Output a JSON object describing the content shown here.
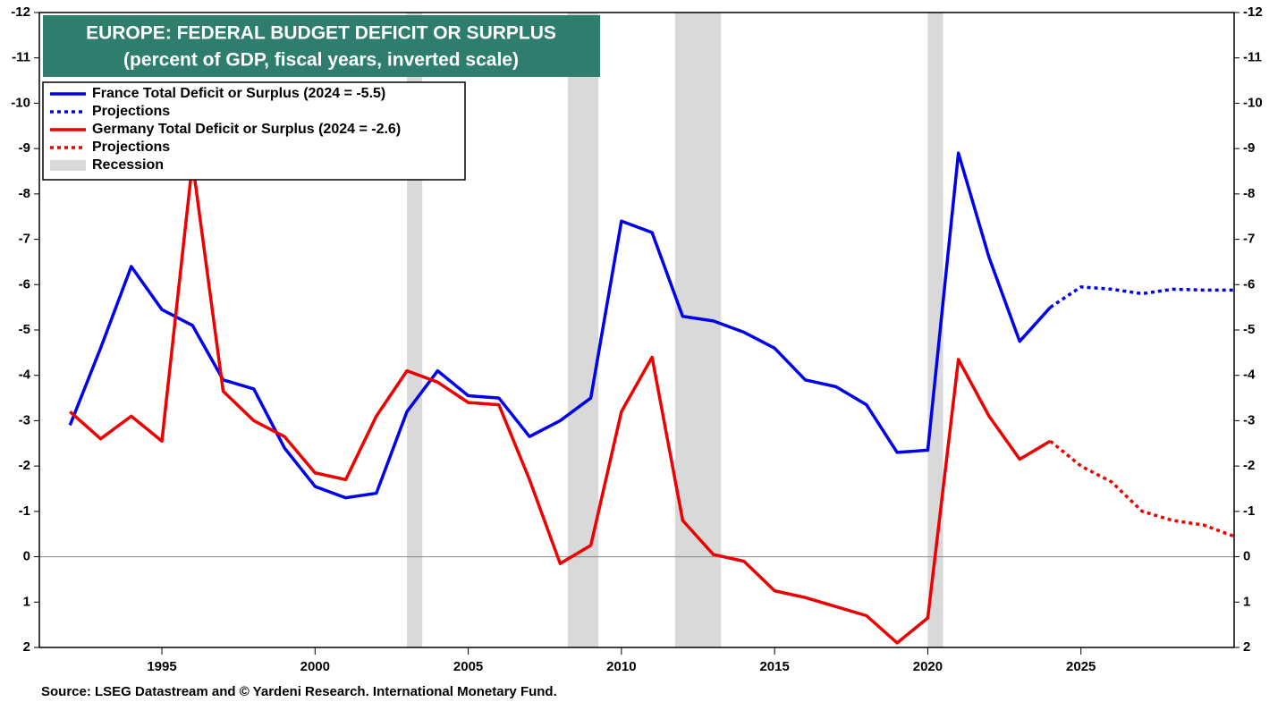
{
  "chart_data": {
    "type": "line",
    "title": "EUROPE: FEDERAL BUDGET DEFICIT OR SURPLUS",
    "subtitle": "(percent of GDP, fiscal years, inverted scale)",
    "source": "Source: LSEG Datastream and © Yardeni Research. International Monetary Fund.",
    "x": [
      1992,
      1993,
      1994,
      1995,
      1996,
      1997,
      1998,
      1999,
      2000,
      2001,
      2002,
      2003,
      2004,
      2005,
      2006,
      2007,
      2008,
      2009,
      2010,
      2011,
      2012,
      2013,
      2014,
      2015,
      2016,
      2017,
      2018,
      2019,
      2020,
      2021,
      2022,
      2023,
      2024,
      2025,
      2026,
      2027,
      2028,
      2029,
      2030
    ],
    "series": [
      {
        "name": "France Total Deficit or Surplus (2024 = -5.5)",
        "color": "#0000ee",
        "dashed": false,
        "values": [
          -2.9,
          -4.6,
          -6.4,
          -5.45,
          -5.1,
          -3.9,
          -3.7,
          -2.4,
          -1.55,
          -1.3,
          -1.4,
          -3.2,
          -4.1,
          -3.55,
          -3.5,
          -2.65,
          -3.0,
          -3.5,
          -7.4,
          -7.15,
          -5.3,
          -5.2,
          -4.95,
          -4.6,
          -3.9,
          -3.75,
          -3.35,
          -2.3,
          -2.35,
          -8.9,
          -6.6,
          -4.75,
          -5.5,
          null,
          null,
          null,
          null,
          null,
          null
        ]
      },
      {
        "name": "Projections",
        "color": "#0000ee",
        "dashed": true,
        "values": [
          null,
          null,
          null,
          null,
          null,
          null,
          null,
          null,
          null,
          null,
          null,
          null,
          null,
          null,
          null,
          null,
          null,
          null,
          null,
          null,
          null,
          null,
          null,
          null,
          null,
          null,
          null,
          null,
          null,
          null,
          null,
          null,
          -5.5,
          -5.95,
          -5.9,
          -5.8,
          -5.9,
          -5.88,
          -5.88
        ]
      },
      {
        "name": "Germany Total Deficit or Surplus (2024 = -2.6)",
        "color": "#ee0000",
        "dashed": false,
        "values": [
          -3.2,
          -2.6,
          -3.1,
          -2.55,
          -8.7,
          -3.65,
          -3.0,
          -2.65,
          -1.85,
          -1.7,
          -3.1,
          -4.1,
          -3.85,
          -3.4,
          -3.35,
          -1.7,
          0.15,
          -0.25,
          -3.2,
          -4.4,
          -0.8,
          -0.05,
          0.1,
          0.75,
          0.9,
          1.1,
          1.3,
          1.9,
          1.35,
          -4.35,
          -3.1,
          -2.15,
          -2.55,
          null,
          null,
          null,
          null,
          null,
          null
        ]
      },
      {
        "name": "Projections",
        "color": "#ee0000",
        "dashed": true,
        "values": [
          null,
          null,
          null,
          null,
          null,
          null,
          null,
          null,
          null,
          null,
          null,
          null,
          null,
          null,
          null,
          null,
          null,
          null,
          null,
          null,
          null,
          null,
          null,
          null,
          null,
          null,
          null,
          null,
          null,
          null,
          null,
          null,
          -2.55,
          -2.0,
          -1.65,
          -1.0,
          -0.8,
          -0.7,
          -0.45
        ]
      }
    ],
    "recession": {
      "name": "Recession",
      "color": "#d9d9d9",
      "periods": [
        [
          2003.0,
          2003.5
        ],
        [
          2008.25,
          2009.25
        ],
        [
          2011.75,
          2013.25
        ],
        [
          2020.0,
          2020.5
        ]
      ]
    },
    "xlim": [
      1991,
      2030
    ],
    "xticks": [
      1995,
      2000,
      2005,
      2010,
      2015,
      2020,
      2025
    ],
    "ylim": [
      -12,
      2
    ],
    "yticks": [
      -12,
      -11,
      -10,
      -9,
      -8,
      -7,
      -6,
      -5,
      -4,
      -3,
      -2,
      -1,
      0,
      1,
      2
    ],
    "inverted": true,
    "right_axis": true,
    "title_box_color": "#2e7d6e"
  }
}
